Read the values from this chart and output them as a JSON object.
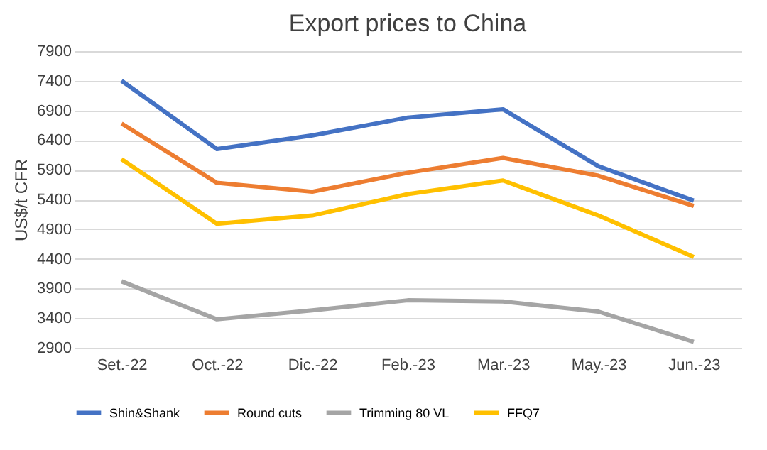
{
  "chart_data": {
    "type": "line",
    "title": "Export prices to China",
    "ylabel": "US$/t CFR",
    "categories": [
      "Set.-22",
      "Oct.-22",
      "Dic.-22",
      "Feb.-23",
      "Mar.-23",
      "May.-23",
      "Jun.-23"
    ],
    "series": [
      {
        "name": "Shin&Shank",
        "color": "#4472c4",
        "values": [
          7400,
          6250,
          6480,
          6780,
          6920,
          5960,
          5380
        ]
      },
      {
        "name": "Round cuts",
        "color": "#ed7d31",
        "values": [
          6680,
          5680,
          5530,
          5850,
          6100,
          5800,
          5290
        ]
      },
      {
        "name": "Trimming 80 VL",
        "color": "#a5a5a5",
        "values": [
          4020,
          3380,
          3530,
          3700,
          3680,
          3510,
          3000
        ]
      },
      {
        "name": "FFQ7",
        "color": "#ffc000",
        "values": [
          6080,
          4990,
          5130,
          5490,
          5720,
          5130,
          4430
        ]
      }
    ],
    "ylim": [
      2900,
      7900
    ],
    "yticks": [
      2900,
      3400,
      3900,
      4400,
      4900,
      5400,
      5900,
      6400,
      6900,
      7400,
      7900
    ],
    "grid": "y",
    "legend": "bottom",
    "marker": "none",
    "line_style": "solid"
  }
}
